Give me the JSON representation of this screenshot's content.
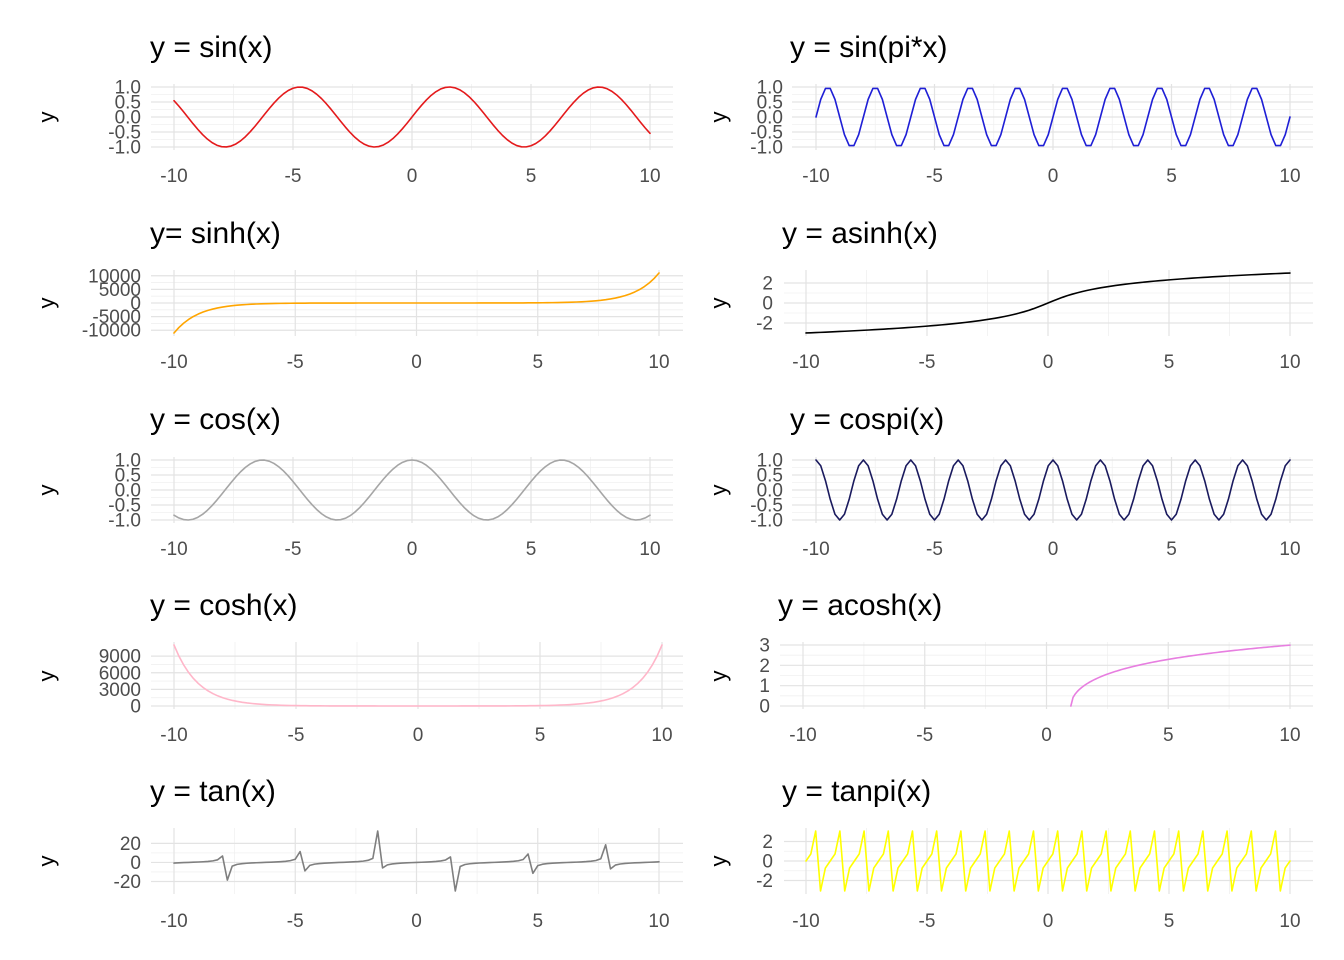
{
  "chart_data": [
    {
      "type": "line",
      "title": "y = sin(x)",
      "ylabel": "y",
      "xlim": [
        -10,
        10
      ],
      "xticks": [
        -10,
        -5,
        0,
        5,
        10
      ],
      "ylim": [
        -1,
        1
      ],
      "yticks": [
        1.0,
        0.5,
        0.0,
        -0.5,
        -1.0
      ],
      "ytick_labels": [
        "1.0",
        "0.5",
        "0.0",
        "-0.5",
        "-1.0"
      ],
      "grid": true,
      "color": "#e41a1c",
      "series": [
        {
          "function": "sin(x)",
          "x_range": [
            -10,
            10
          ],
          "n_points": 101
        }
      ]
    },
    {
      "type": "line",
      "title": "y = sin(pi*x)",
      "ylabel": "y",
      "xlim": [
        -10,
        10
      ],
      "xticks": [
        -10,
        -5,
        0,
        5,
        10
      ],
      "ylim": [
        -1,
        1
      ],
      "yticks": [
        1.0,
        0.5,
        0.0,
        -0.5,
        -1.0
      ],
      "ytick_labels": [
        "1.0",
        "0.5",
        "0.0",
        "-0.5",
        "-1.0"
      ],
      "grid": true,
      "color": "#1f1fd6",
      "series": [
        {
          "function": "sin(pi*x)",
          "x_range": [
            -10,
            10
          ],
          "n_points": 101
        }
      ]
    },
    {
      "type": "line",
      "title": "y= sinh(x)",
      "ylabel": "y",
      "xlim": [
        -10,
        10
      ],
      "xticks": [
        -10,
        -5,
        0,
        5,
        10
      ],
      "ylim": [
        -11013,
        11013
      ],
      "yticks": [
        10000,
        5000,
        0,
        -5000,
        -10000
      ],
      "ytick_labels": [
        "10000",
        "5000",
        "0",
        "-5000",
        "-10000"
      ],
      "grid": true,
      "color": "#ffa500",
      "series": [
        {
          "function": "sinh(x)",
          "x_range": [
            -10,
            10
          ],
          "n_points": 101
        }
      ]
    },
    {
      "type": "line",
      "title": "y = asinh(x)",
      "ylabel": "y",
      "xlim": [
        -10,
        10
      ],
      "xticks": [
        -10,
        -5,
        0,
        5,
        10
      ],
      "ylim": [
        -3,
        3
      ],
      "yticks": [
        2,
        0,
        -2
      ],
      "ytick_labels": [
        "2",
        "0",
        "-2"
      ],
      "grid": true,
      "color": "#000000",
      "series": [
        {
          "function": "asinh(x)",
          "x_range": [
            -10,
            10
          ],
          "n_points": 101
        }
      ]
    },
    {
      "type": "line",
      "title": "y = cos(x)",
      "ylabel": "y",
      "xlim": [
        -10,
        10
      ],
      "xticks": [
        -10,
        -5,
        0,
        5,
        10
      ],
      "ylim": [
        -1,
        1
      ],
      "yticks": [
        1.0,
        0.5,
        0.0,
        -0.5,
        -1.0
      ],
      "ytick_labels": [
        "1.0",
        "0.5",
        "0.0",
        "-0.5",
        "-1.0"
      ],
      "grid": true,
      "color": "#a6a6a6",
      "series": [
        {
          "function": "cos(x)",
          "x_range": [
            -10,
            10
          ],
          "n_points": 101
        }
      ]
    },
    {
      "type": "line",
      "title": "y = cospi(x)",
      "ylabel": "y",
      "xlim": [
        -10,
        10
      ],
      "xticks": [
        -10,
        -5,
        0,
        5,
        10
      ],
      "ylim": [
        -1,
        1
      ],
      "yticks": [
        1.0,
        0.5,
        0.0,
        -0.5,
        -1.0
      ],
      "ytick_labels": [
        "1.0",
        "0.5",
        "0.0",
        "-0.5",
        "-1.0"
      ],
      "grid": true,
      "color": "#1a1a5e",
      "series": [
        {
          "function": "cospi(x)",
          "x_range": [
            -10,
            10
          ],
          "n_points": 101
        }
      ]
    },
    {
      "type": "line",
      "title": "y = cosh(x)",
      "ylabel": "y",
      "xlim": [
        -10,
        10
      ],
      "xticks": [
        -10,
        -5,
        0,
        5,
        10
      ],
      "ylim": [
        0,
        11013
      ],
      "yticks": [
        9000,
        6000,
        3000,
        0
      ],
      "ytick_labels": [
        "9000",
        "6000",
        "3000",
        "0"
      ],
      "grid": true,
      "color": "#ffb6c9",
      "series": [
        {
          "function": "cosh(x)",
          "x_range": [
            -10,
            10
          ],
          "n_points": 101
        }
      ]
    },
    {
      "type": "line",
      "title": "y = acosh(x)",
      "ylabel": "y",
      "xlim": [
        -10,
        10
      ],
      "xticks": [
        -10,
        -5,
        0,
        5,
        10
      ],
      "ylim": [
        0,
        3
      ],
      "yticks": [
        3,
        2,
        1,
        0
      ],
      "ytick_labels": [
        "3",
        "2",
        "1",
        "0"
      ],
      "grid": true,
      "color": "#e77ee0",
      "series": [
        {
          "function": "acosh(x)",
          "x_range": [
            1,
            10
          ],
          "n_points": 101
        }
      ]
    },
    {
      "type": "line",
      "title": "y = tan(x)",
      "ylabel": "y",
      "xlim": [
        -10,
        10
      ],
      "xticks": [
        -10,
        -5,
        0,
        5,
        10
      ],
      "ylim": [
        -30,
        33
      ],
      "yticks": [
        20,
        0,
        -20
      ],
      "ytick_labels": [
        "20",
        "0",
        "-20"
      ],
      "grid": true,
      "color": "#7f7f7f",
      "series": [
        {
          "function": "tan(x)",
          "x_range": [
            -10,
            10
          ],
          "n_points": 101
        }
      ]
    },
    {
      "type": "line",
      "title": "y = tanpi(x)",
      "ylabel": "y",
      "xlim": [
        -10,
        10
      ],
      "xticks": [
        -10,
        -5,
        0,
        5,
        10
      ],
      "ylim": [
        -3.08,
        3.08
      ],
      "yticks": [
        2,
        0,
        -2
      ],
      "ytick_labels": [
        "2",
        "0",
        "-2"
      ],
      "grid": true,
      "color": "#ffff00",
      "series": [
        {
          "function": "tanpi(x)",
          "x_range": [
            -10,
            10
          ],
          "n_points": 101
        }
      ]
    }
  ]
}
